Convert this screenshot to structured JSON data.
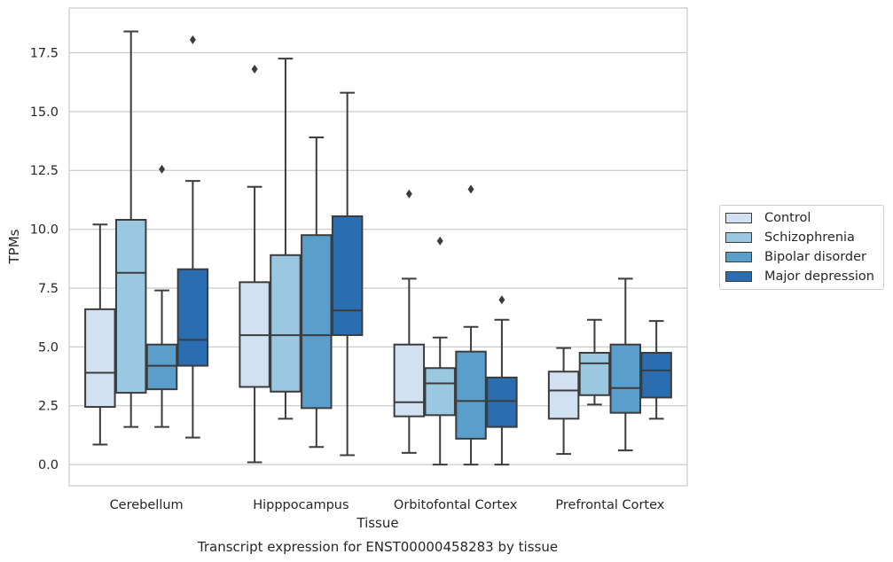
{
  "chart_data": {
    "type": "box",
    "title": "Transcript expression for ENST00000458283 by tissue",
    "xlabel": "Tissue",
    "ylabel": "TPMs",
    "ylim": [
      -0.9,
      19.4
    ],
    "yticks": [
      "0.0",
      "2.5",
      "5.0",
      "7.5",
      "10.0",
      "12.5",
      "15.0",
      "17.5"
    ],
    "ytick_values": [
      0,
      2.5,
      5,
      7.5,
      10,
      12.5,
      15,
      17.5
    ],
    "grid": "horizontal",
    "legend_position": "right",
    "categories": [
      "Cerebellum",
      "Hipppocampus",
      "Orbitofontal Cortex",
      "Prefrontal Cortex"
    ],
    "series": [
      {
        "name": "Control",
        "color": "#d1e1f2",
        "boxes": [
          {
            "whisker_low": 0.85,
            "q1": 2.45,
            "median": 3.9,
            "q3": 6.6,
            "whisker_high": 10.2,
            "outliers": []
          },
          {
            "whisker_low": 0.1,
            "q1": 3.3,
            "median": 5.5,
            "q3": 7.75,
            "whisker_high": 11.8,
            "outliers": [
              16.8
            ]
          },
          {
            "whisker_low": 0.5,
            "q1": 2.05,
            "median": 2.65,
            "q3": 5.1,
            "whisker_high": 7.9,
            "outliers": [
              11.5
            ]
          },
          {
            "whisker_low": 0.45,
            "q1": 1.95,
            "median": 3.15,
            "q3": 3.95,
            "whisker_high": 4.95,
            "outliers": []
          }
        ]
      },
      {
        "name": "Schizophrenia",
        "color": "#9ac8e0",
        "boxes": [
          {
            "whisker_low": 1.6,
            "q1": 3.05,
            "median": 8.15,
            "q3": 10.4,
            "whisker_high": 18.4,
            "outliers": []
          },
          {
            "whisker_low": 1.95,
            "q1": 3.1,
            "median": 5.5,
            "q3": 8.9,
            "whisker_high": 17.25,
            "outliers": []
          },
          {
            "whisker_low": 0.0,
            "q1": 2.1,
            "median": 3.45,
            "q3": 4.1,
            "whisker_high": 5.4,
            "outliers": [
              9.5
            ]
          },
          {
            "whisker_low": 2.55,
            "q1": 2.95,
            "median": 4.3,
            "q3": 4.75,
            "whisker_high": 6.15,
            "outliers": []
          }
        ]
      },
      {
        "name": "Bipolar disorder",
        "color": "#5a9ecc",
        "boxes": [
          {
            "whisker_low": 1.6,
            "q1": 3.2,
            "median": 4.2,
            "q3": 5.1,
            "whisker_high": 7.4,
            "outliers": [
              12.55
            ]
          },
          {
            "whisker_low": 0.75,
            "q1": 2.4,
            "median": 5.5,
            "q3": 9.75,
            "whisker_high": 13.9,
            "outliers": []
          },
          {
            "whisker_low": 0.0,
            "q1": 1.1,
            "median": 2.7,
            "q3": 4.8,
            "whisker_high": 5.85,
            "outliers": [
              11.7
            ]
          },
          {
            "whisker_low": 0.6,
            "q1": 2.2,
            "median": 3.25,
            "q3": 5.1,
            "whisker_high": 7.9,
            "outliers": []
          }
        ]
      },
      {
        "name": "Major depression",
        "color": "#2a6eb1",
        "boxes": [
          {
            "whisker_low": 1.15,
            "q1": 4.2,
            "median": 5.3,
            "q3": 8.3,
            "whisker_high": 12.05,
            "outliers": [
              18.05
            ]
          },
          {
            "whisker_low": 0.4,
            "q1": 5.5,
            "median": 6.55,
            "q3": 10.55,
            "whisker_high": 15.8,
            "outliers": []
          },
          {
            "whisker_low": 0.0,
            "q1": 1.6,
            "median": 2.7,
            "q3": 3.7,
            "whisker_high": 6.15,
            "outliers": [
              7.0
            ]
          },
          {
            "whisker_low": 1.95,
            "q1": 2.85,
            "median": 4.0,
            "q3": 4.75,
            "whisker_high": 6.1,
            "outliers": []
          }
        ]
      }
    ]
  }
}
